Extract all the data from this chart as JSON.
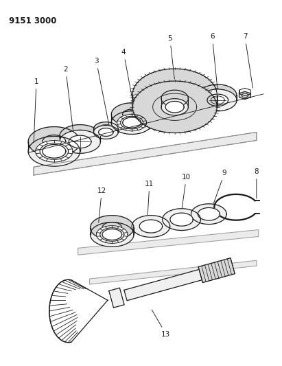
{
  "title": "9151 3000",
  "bg_color": "#ffffff",
  "line_color": "#1a1a1a",
  "gray_fill": "#d8d8d8",
  "light_fill": "#f0f0f0",
  "card_fill": "#f5f5f5",
  "card_edge": "#999999"
}
